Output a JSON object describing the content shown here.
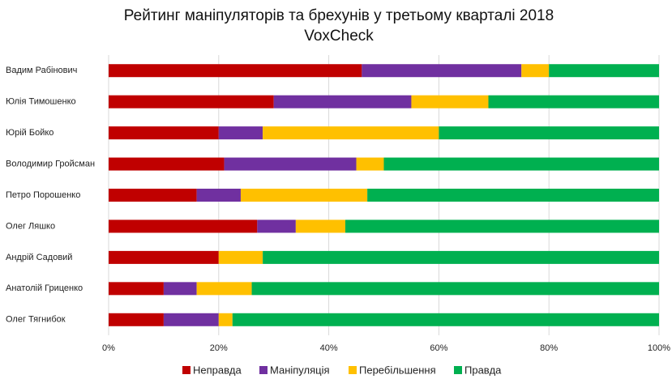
{
  "chart_data": {
    "type": "stacked-barh",
    "title": "Рейтинг маніпуляторів та брехунів у третьому кварталі 2018",
    "subtitle": "VoxCheck",
    "categories": [
      "Вадим Рабінович",
      "Юлія Тимошенко",
      "Юрій Бойко",
      "Володимир Гройсман",
      "Петро Порошенко",
      "Олег Ляшко",
      "Андрій Садовий",
      "Анатолій Гриценко",
      "Олег Тягнибок"
    ],
    "series": [
      {
        "name": "Неправда",
        "color": "#c00000",
        "values": [
          46,
          30,
          20,
          21,
          16,
          27,
          20,
          10,
          10
        ]
      },
      {
        "name": "Маніпуляція",
        "color": "#7030a0",
        "values": [
          29,
          25,
          8,
          24,
          8,
          7,
          0,
          6,
          10
        ]
      },
      {
        "name": "Перебільшення",
        "color": "#ffc000",
        "values": [
          5,
          14,
          32,
          5,
          23,
          9,
          8,
          10,
          2.5
        ]
      },
      {
        "name": "Правда",
        "color": "#00b050",
        "values": [
          20,
          31,
          40,
          50,
          53,
          57,
          72,
          74,
          77.5
        ]
      }
    ],
    "xlim": [
      0,
      100
    ],
    "xticks": [
      {
        "value": 0,
        "label": "0%"
      },
      {
        "value": 20,
        "label": "20%"
      },
      {
        "value": 40,
        "label": "40%"
      },
      {
        "value": 60,
        "label": "60%"
      },
      {
        "value": 80,
        "label": "80%"
      },
      {
        "value": 100,
        "label": "100%"
      }
    ],
    "grid": true,
    "legend": "bottom"
  }
}
